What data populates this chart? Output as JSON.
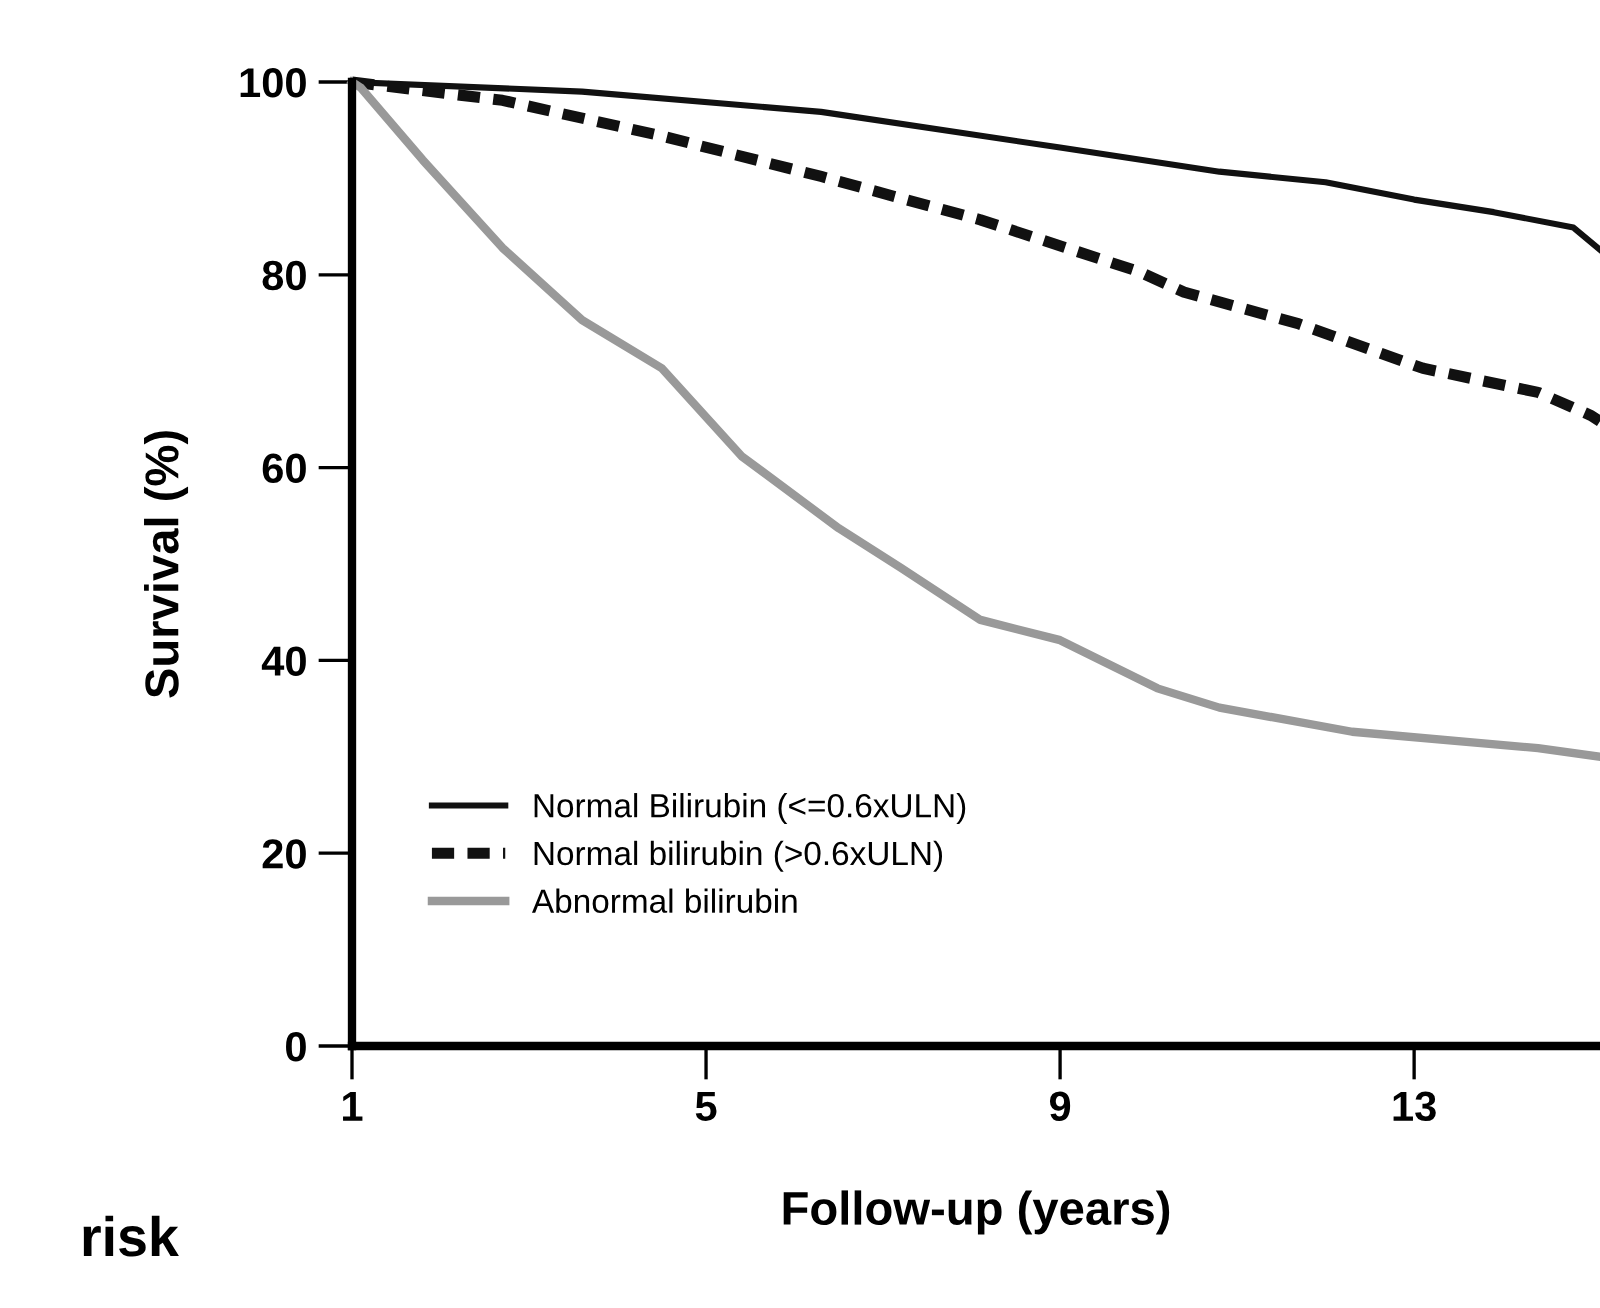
{
  "chart_data": {
    "type": "line",
    "xlabel": "Follow-up (years)",
    "ylabel": "Survival (%)",
    "xlim": [
      1,
      15.1
    ],
    "ylim": [
      0,
      100
    ],
    "xticks": [
      1,
      5,
      9,
      13
    ],
    "yticks": [
      0,
      20,
      40,
      60,
      80,
      100
    ],
    "grid": false,
    "legend": "lower left",
    "marker": "none",
    "annotations": [
      "risk"
    ],
    "series": [
      {
        "name": "Normal Bilirubin (<=0.6xULN)",
        "color": "#111111",
        "line_style": "solid",
        "x": [
          1,
          3.6,
          6.3,
          9,
          10.8,
          12,
          13,
          13.9,
          14.8,
          15.1
        ],
        "values": [
          100,
          99.0,
          96.9,
          93.2,
          90.7,
          89.6,
          87.8,
          86.5,
          84.9,
          82.6
        ]
      },
      {
        "name": "Normal bilirubin (>0.6xULN)",
        "color": "#111111",
        "line_style": "dashed",
        "x": [
          1,
          2.7,
          4.5,
          6.3,
          8.1,
          9.9,
          10.4,
          11.7,
          13.1,
          14.4,
          15.0,
          15.1
        ],
        "values": [
          100,
          98.1,
          94.4,
          90.2,
          85.7,
          80.3,
          78.2,
          74.9,
          70.3,
          67.8,
          65.4,
          64.8
        ]
      },
      {
        "name": "Abnormal bilirubin",
        "color": "#999999",
        "line_style": "solid",
        "x": [
          1,
          1.1,
          1.8,
          2.7,
          3.6,
          4.5,
          5.4,
          6.5,
          7.2,
          8.1,
          9,
          10.1,
          10.8,
          12.3,
          14.4,
          15.1
        ],
        "values": [
          100,
          99.4,
          91.9,
          82.8,
          75.3,
          70.3,
          61.2,
          53.7,
          49.6,
          44.2,
          42.1,
          37.1,
          35.1,
          32.6,
          30.9,
          30.0
        ]
      }
    ]
  }
}
